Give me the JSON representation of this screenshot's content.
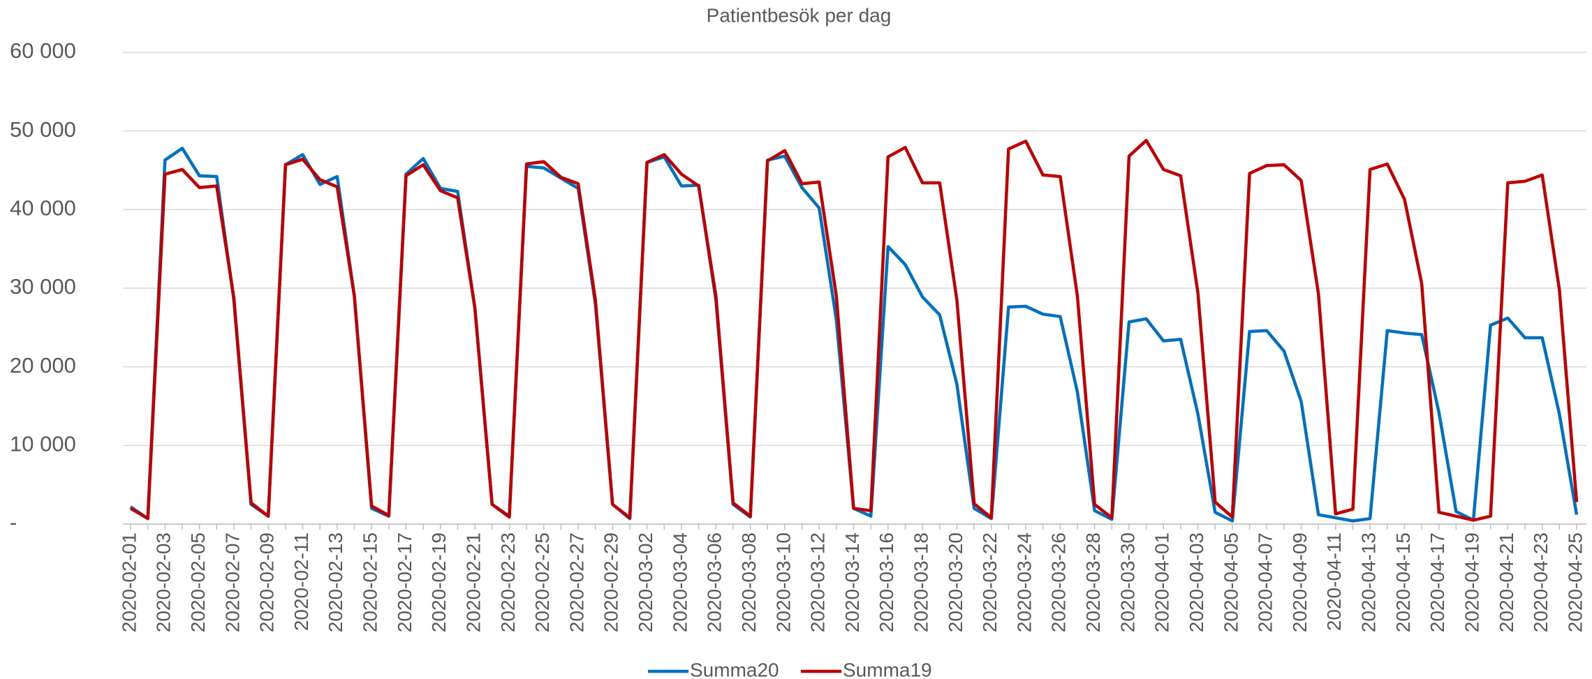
{
  "chart_data": {
    "type": "line",
    "title": "Patientbesök per dag",
    "categories": [
      "2020-02-01",
      null,
      "2020-02-03",
      null,
      "2020-02-05",
      null,
      "2020-02-07",
      null,
      "2020-02-09",
      null,
      "2020-02-11",
      null,
      "2020-02-13",
      null,
      "2020-02-15",
      null,
      "2020-02-17",
      null,
      "2020-02-19",
      null,
      "2020-02-21",
      null,
      "2020-02-23",
      null,
      "2020-02-25",
      null,
      "2020-02-27",
      null,
      "2020-02-29",
      null,
      "2020-03-02",
      null,
      "2020-03-04",
      null,
      "2020-03-06",
      null,
      "2020-03-08",
      null,
      "2020-03-10",
      null,
      "2020-03-12",
      null,
      "2020-03-14",
      null,
      "2020-03-16",
      null,
      "2020-03-18",
      null,
      "2020-03-20",
      null,
      "2020-03-22",
      null,
      "2020-03-24",
      null,
      "2020-03-26",
      null,
      "2020-03-28",
      null,
      "2020-03-30",
      null,
      "2020-04-01",
      null,
      "2020-04-03",
      null,
      "2020-04-05",
      null,
      "2020-04-07",
      null,
      "2020-04-09",
      null,
      "2020-04-11",
      null,
      "2020-04-13",
      null,
      "2020-04-15",
      null,
      "2020-04-17",
      null,
      "2020-04-19",
      null,
      "2020-04-21",
      null,
      "2020-04-23",
      null,
      "2020-04-25"
    ],
    "series": [
      {
        "name": "Summa20",
        "color": "#0070c0",
        "values": [
          2200,
          700,
          46300,
          47800,
          44300,
          44200,
          28500,
          2500,
          1000,
          45700,
          47000,
          43200,
          44200,
          29000,
          2000,
          1000,
          44500,
          46500,
          42700,
          42300,
          27500,
          2500,
          1000,
          45500,
          45300,
          44000,
          42700,
          28000,
          2500,
          700,
          46000,
          46700,
          43000,
          43100,
          28500,
          2500,
          900,
          46300,
          46800,
          42800,
          40200,
          26000,
          2000,
          1000,
          35300,
          33000,
          28900,
          26600,
          17800,
          2000,
          700,
          27600,
          27700,
          26700,
          26400,
          16800,
          1700,
          600,
          25700,
          26100,
          23300,
          23500,
          14000,
          1500,
          400,
          24500,
          24600,
          22000,
          15600,
          1200,
          800,
          400,
          700,
          24600,
          24300,
          24100,
          14200,
          1600,
          500,
          25300,
          26200,
          23700,
          23700,
          14000,
          1200
        ]
      },
      {
        "name": "Summa19",
        "color": "#c00000",
        "values": [
          2000,
          700,
          44500,
          45100,
          42800,
          43000,
          28800,
          2700,
          1000,
          45700,
          46400,
          43800,
          42900,
          29000,
          2300,
          1100,
          44300,
          45700,
          42400,
          41500,
          27500,
          2500,
          900,
          45800,
          46100,
          44100,
          43300,
          28500,
          2500,
          800,
          46000,
          47000,
          44500,
          43000,
          29000,
          2700,
          1000,
          46200,
          47500,
          43300,
          43500,
          29000,
          2000,
          1700,
          46700,
          47900,
          43400,
          43400,
          28500,
          2600,
          800,
          47700,
          48700,
          44400,
          44200,
          29000,
          2500,
          800,
          46800,
          48800,
          45100,
          44300,
          29400,
          2800,
          900,
          44600,
          45600,
          45700,
          43700,
          29300,
          1300,
          1900,
          45100,
          45800,
          41300,
          30600,
          1500,
          1000,
          500,
          1000,
          43400,
          43600,
          44400,
          29800,
          2800
        ]
      }
    ],
    "ylim": [
      0,
      60000
    ],
    "yticks": [
      {
        "value": 0,
        "label": "-"
      },
      {
        "value": 10000,
        "label": "10 000"
      },
      {
        "value": 20000,
        "label": "20 000"
      },
      {
        "value": 30000,
        "label": "30 000"
      },
      {
        "value": 40000,
        "label": "40 000"
      },
      {
        "value": 50000,
        "label": "50 000"
      },
      {
        "value": 60000,
        "label": "60 000"
      }
    ],
    "grid": true,
    "legend": "bottom"
  }
}
